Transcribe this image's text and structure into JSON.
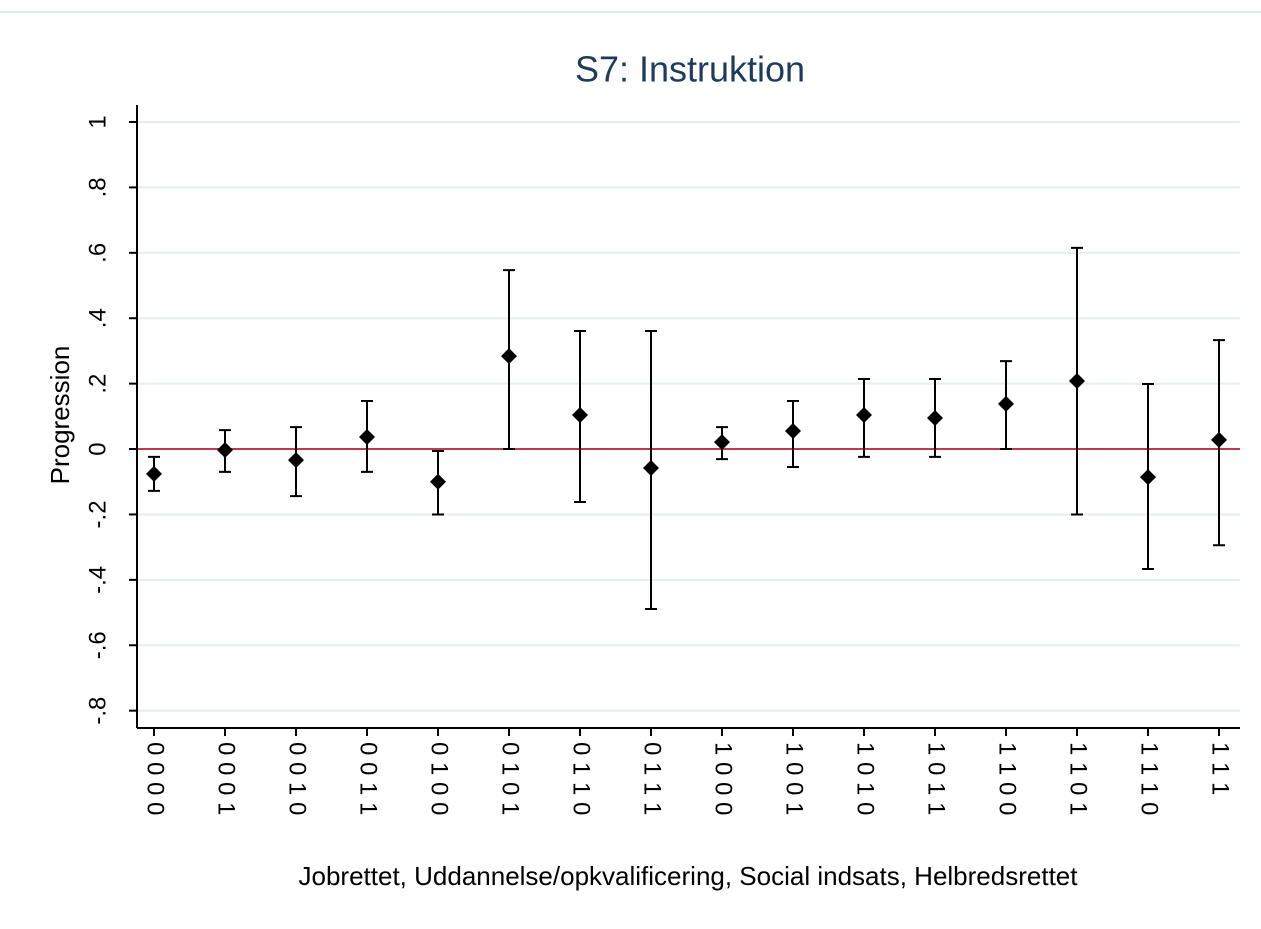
{
  "chart_data": {
    "type": "errorbar",
    "title": "S7: Instruktion",
    "x_label": "Jobrettet, Uddannelse/opkvalificering, Social indsats, Helbredsrettet",
    "y_label": "Progression",
    "categories": [
      "0 0 0 0",
      "0 0 0 1",
      "0 0 1 0",
      "0 0 1 1",
      "0 1 0 0",
      "0 1 0 1",
      "0 1 1 0",
      "0 1 1 1",
      "1 0 0 0",
      "1 0 0 1",
      "1 0 1 0",
      "1 0 1 1",
      "1 1 0 0",
      "1 1 0 1",
      "1 1 1 0",
      "1 1 1"
    ],
    "values": [
      -0.076,
      -0.003,
      -0.034,
      0.037,
      -0.1,
      0.284,
      0.104,
      -0.058,
      0.021,
      0.055,
      0.104,
      0.095,
      0.138,
      0.208,
      -0.086,
      0.028
    ],
    "lower": [
      -0.128,
      -0.07,
      -0.144,
      -0.07,
      -0.2,
      0,
      -0.162,
      -0.489,
      -0.031,
      -0.055,
      -0.024,
      -0.024,
      0,
      -0.2,
      -0.367,
      -0.294
    ],
    "upper": [
      -0.024,
      0.058,
      0.067,
      0.147,
      -0.006,
      0.547,
      0.361,
      0.361,
      0.067,
      0.147,
      0.214,
      0.214,
      0.269,
      0.615,
      0.199,
      0.333
    ],
    "color": "#000000",
    "reference_line": 0,
    "reference_color": "#c0394d",
    "ylim": [
      -0.853,
      1.052
    ],
    "yticks": [
      {
        "value": -0.8,
        "label": "-.8"
      },
      {
        "value": -0.6,
        "label": "-.6"
      },
      {
        "value": -0.4,
        "label": "-.4"
      },
      {
        "value": -0.2,
        "label": "-.2"
      },
      0,
      {
        "value": 0.2,
        "label": ".2"
      },
      {
        "value": 0.4,
        "label": ".4"
      },
      {
        "value": 0.6,
        "label": ".6"
      },
      {
        "value": 0.8,
        "label": ".8"
      },
      1
    ],
    "grid": true
  }
}
